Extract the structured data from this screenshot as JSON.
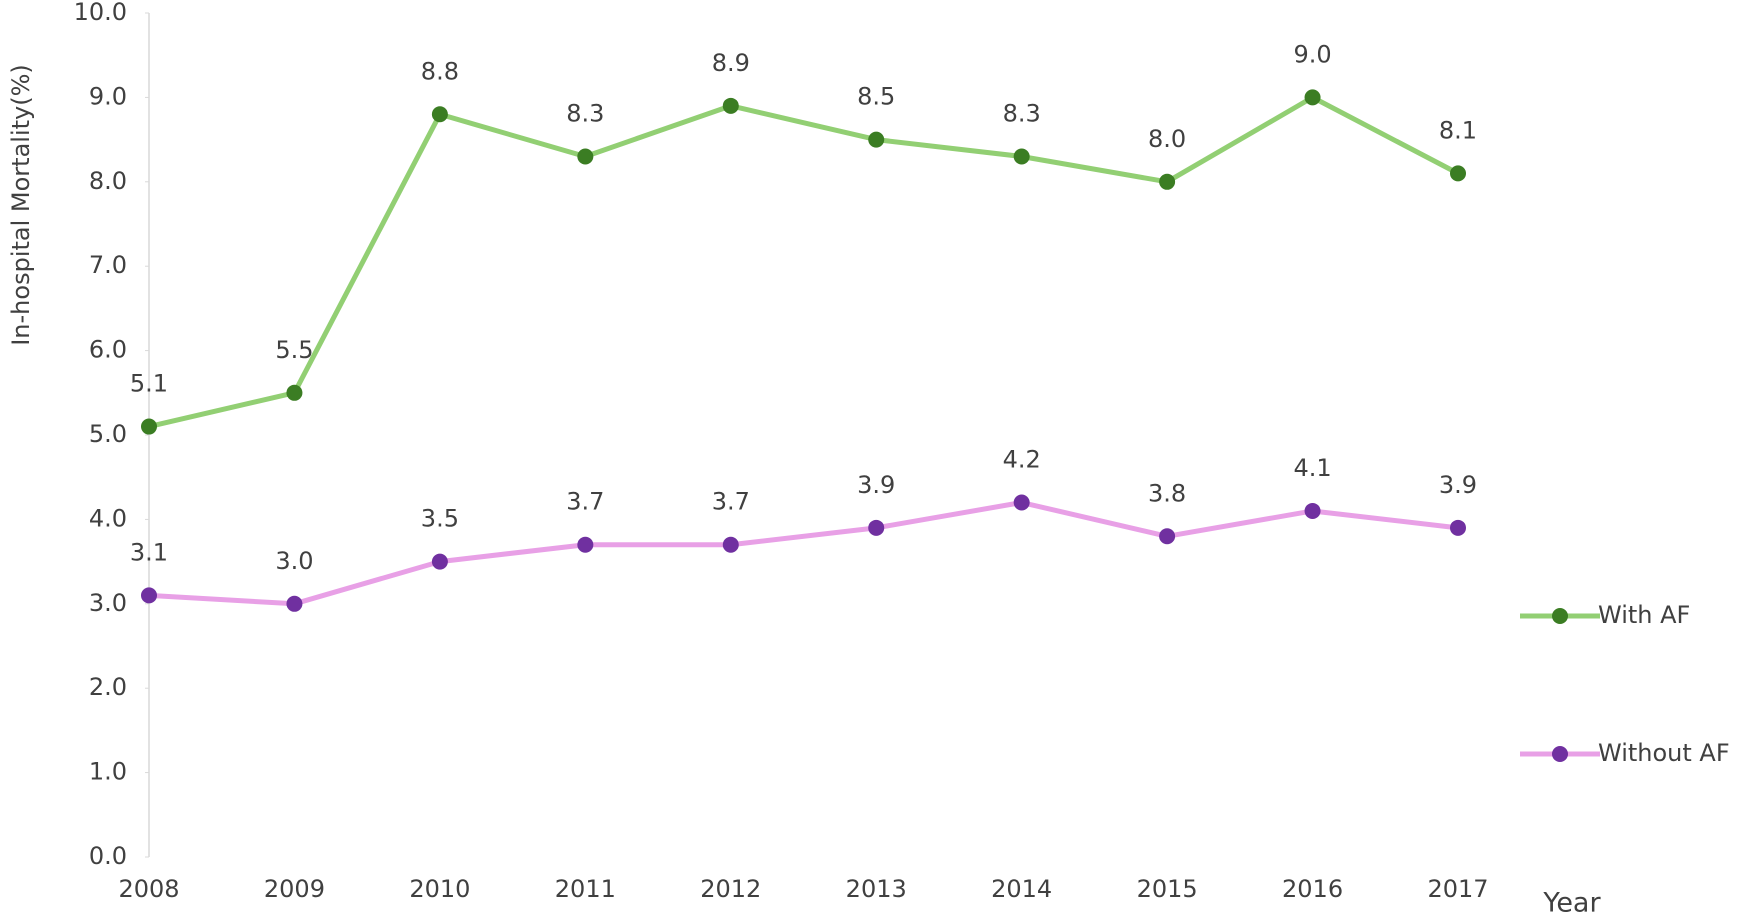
{
  "chart_data": {
    "type": "line",
    "y_label": "In-hospital Mortality(%)",
    "x_label": "Year",
    "categories": [
      "2008",
      "2009",
      "2010",
      "2011",
      "2012",
      "2013",
      "2014",
      "2015",
      "2016",
      "2017"
    ],
    "ylim": [
      0,
      10
    ],
    "yticks": [
      {
        "value": 0,
        "label": "0.0"
      },
      {
        "value": 1,
        "label": "1.0"
      },
      {
        "value": 2,
        "label": "2.0"
      },
      {
        "value": 3,
        "label": "3.0"
      },
      {
        "value": 4,
        "label": "4.0"
      },
      {
        "value": 5,
        "label": "5.0"
      },
      {
        "value": 6,
        "label": "6.0"
      },
      {
        "value": 7,
        "label": "7.0"
      },
      {
        "value": 8,
        "label": "8.0"
      },
      {
        "value": 9,
        "label": "9.0"
      },
      {
        "value": 10,
        "label": "10.0"
      }
    ],
    "grid": false,
    "legend": "right",
    "series": [
      {
        "name": "With AF",
        "color": "#92cf73",
        "marker_color": "#3b7d23",
        "values": [
          5.1,
          5.5,
          8.8,
          8.3,
          8.9,
          8.5,
          8.3,
          8.0,
          9.0,
          8.1
        ],
        "value_labels": [
          "5.1",
          "5.5",
          "8.8",
          "8.3",
          "8.9",
          "8.5",
          "8.3",
          "8.0",
          "9.0",
          "8.1"
        ]
      },
      {
        "name": "Without AF",
        "color": "#e8a0e6",
        "marker_color": "#7030a0",
        "values": [
          3.1,
          3.0,
          3.5,
          3.7,
          3.7,
          3.9,
          4.2,
          3.8,
          4.1,
          3.9
        ],
        "value_labels": [
          "3.1",
          "3.0",
          "3.5",
          "3.7",
          "3.7",
          "3.9",
          "4.2",
          "3.8",
          "4.1",
          "3.9"
        ]
      }
    ]
  }
}
